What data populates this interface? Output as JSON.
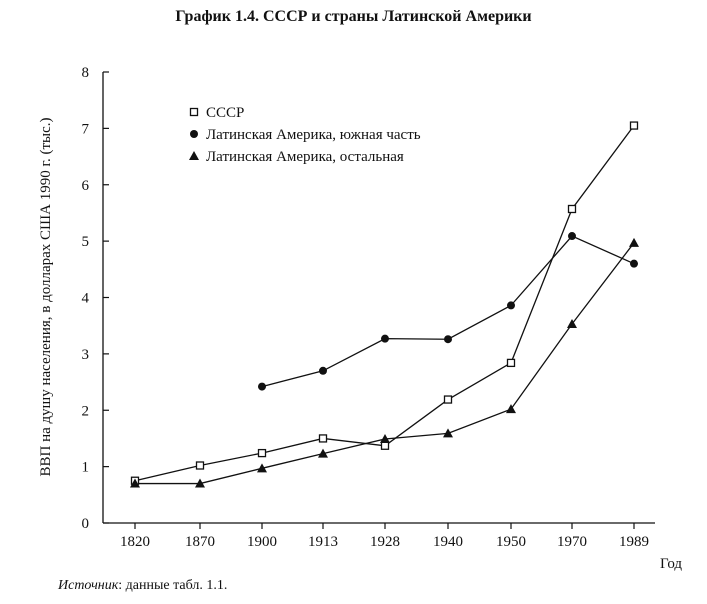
{
  "chart_data": {
    "type": "line",
    "title": "График 1.4. СССР и страны Латинской Америки",
    "xlabel": "Год",
    "ylabel": "ВВП на душу населения, в долларах США 1990 г. (тыс.)",
    "categories": [
      "1820",
      "1870",
      "1900",
      "1913",
      "1928",
      "1940",
      "1950",
      "1970",
      "1989"
    ],
    "yticks": [
      "0",
      "1",
      "2",
      "3",
      "4",
      "5",
      "6",
      "7",
      "8"
    ],
    "ylim": [
      0,
      8
    ],
    "grid": false,
    "legend_position": "top-left",
    "series": [
      {
        "name": "СССР",
        "marker": "square-open",
        "values": [
          0.75,
          1.02,
          1.24,
          1.5,
          1.37,
          2.19,
          2.84,
          5.57,
          7.05
        ]
      },
      {
        "name": "Латинская Америка, южная часть",
        "marker": "circle",
        "values": [
          null,
          null,
          2.42,
          2.7,
          3.27,
          3.26,
          3.86,
          5.09,
          4.6
        ]
      },
      {
        "name": "Латинская Америка, остальная",
        "marker": "triangle",
        "values": [
          0.7,
          0.7,
          0.97,
          1.23,
          1.49,
          1.59,
          2.02,
          3.53,
          4.97
        ]
      }
    ],
    "source_label": "Источник",
    "source_text": ": данные табл. 1.1."
  },
  "colors": {
    "line": "#111111",
    "marker_fill": "#111111",
    "open_fill": "#ffffff"
  }
}
